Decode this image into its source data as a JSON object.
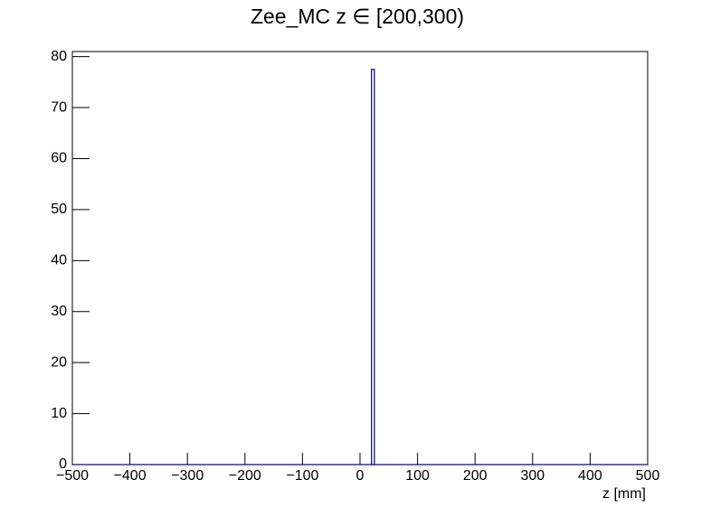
{
  "chart_data": {
    "type": "histogram",
    "title": "Zee_MC z ∈ [200,300)",
    "x_label": "z [mm]",
    "bins": [
      -500,
      20,
      25,
      500
    ],
    "counts": [
      0,
      77.5,
      0
    ],
    "color": "#000080",
    "xlim": [
      -500,
      500
    ],
    "xticks": [
      {
        "value": -500,
        "label": "−500"
      },
      {
        "value": -400,
        "label": "−400"
      },
      {
        "value": -300,
        "label": "−300"
      },
      {
        "value": -200,
        "label": "−200"
      },
      {
        "value": -100,
        "label": "−100"
      },
      0,
      100,
      200,
      300,
      400,
      500
    ],
    "ylim": [
      0,
      81
    ],
    "yticks": [
      0,
      10,
      20,
      30,
      40,
      50,
      60,
      70,
      80
    ],
    "grid": false
  }
}
